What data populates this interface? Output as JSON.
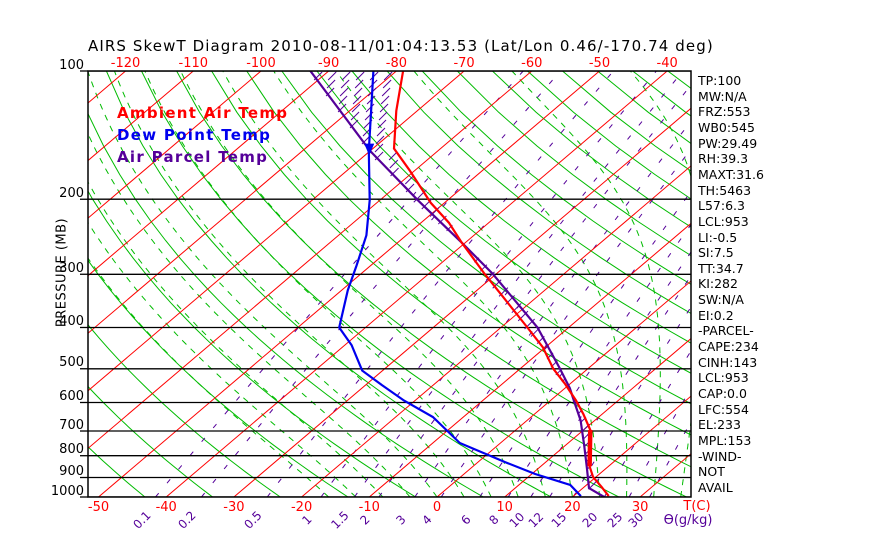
{
  "title": "AIRS SkewT Diagram 2010-08-11/01:04:13.53 (Lat/Lon 0.46/-170.74 deg)",
  "legend": {
    "items": [
      {
        "label": "Ambient Air Temp",
        "color": "#ff0000"
      },
      {
        "label": "Dew Point Temp",
        "color": "#0000ee"
      },
      {
        "label": "Air Parcel Temp",
        "color": "#550099"
      }
    ]
  },
  "axes": {
    "pressure_label": "PRESSURE (MB)",
    "pressure_ticks": [
      100,
      200,
      300,
      400,
      500,
      600,
      700,
      800,
      900,
      1000
    ],
    "temp_ticks_top": [
      -120,
      -110,
      -100,
      -90,
      -80,
      -70,
      -60,
      -50,
      -40
    ],
    "temp_ticks_bottom": [
      -50,
      -40,
      -30,
      -20,
      -10,
      0,
      10,
      20,
      30
    ],
    "temp_unit_label": "T(C)",
    "mixing_ratio_labels": [
      "0.1",
      "0.2",
      "0.5",
      "1",
      "1.5",
      "2",
      "3",
      "4",
      "6",
      "8",
      "10",
      "12",
      "15",
      "20",
      "25",
      "30"
    ],
    "mixing_ratio_unit_label": "Ɵ(g/kg)"
  },
  "stats": [
    "TP:100",
    "MW:N/A",
    "FRZ:553",
    "WB0:545",
    "PW:29.49",
    "RH:39.3",
    "MAXT:31.6",
    "TH:5463",
    "L57:6.3",
    "LCL:953",
    "LI:-0.5",
    "SI:7.5",
    "TT:34.7",
    "KI:282",
    "SW:N/A",
    "EI:0.2",
    "-PARCEL-",
    "CAPE:234",
    "CINH:143",
    "LCL:953",
    "CAP:0.0",
    "LFC:554",
    "EL:233",
    "MPL:153",
    "-WIND-",
    "NOT",
    "AVAIL"
  ],
  "colors": {
    "isotherm": "#ff0000",
    "dry_adiabat": "#00bb00",
    "moist_adiabat": "#00bb00",
    "mixing_ratio": "#550099",
    "isobar": "#000000",
    "frame": "#000000",
    "ambient": "#ff0000",
    "dewpoint": "#0000ee",
    "parcel": "#550099",
    "hatch": "#550099",
    "marker": "#0000ee"
  },
  "chart_data": {
    "type": "line",
    "title": "AIRS SkewT Diagram 2010-08-11/01:04:13.53 (Lat/Lon 0.46/-170.74 deg)",
    "xlabel": "Temperature (C)",
    "ylabel": "PRESSURE (MB)",
    "y_scale": "log",
    "ylim": [
      100,
      1000
    ],
    "x_bottom_range": [
      -50,
      30
    ],
    "x_top_range": [
      -120,
      -40
    ],
    "skew": "45deg isotherms",
    "grid": {
      "isobars_mb": [
        100,
        200,
        300,
        400,
        500,
        600,
        700,
        800,
        900,
        1000
      ],
      "isotherm_step_C": 10,
      "isotherm_range_C": [
        -160,
        40
      ],
      "dry_adiabats_K": {
        "start": 220,
        "end": 450,
        "step": 10
      },
      "moist_adiabats_C": {
        "start": -16,
        "end": 40,
        "step": 4
      },
      "mixing_ratio_g_kg": [
        0.1,
        0.2,
        0.5,
        1,
        1.5,
        2,
        3,
        4,
        6,
        8,
        10,
        12,
        15,
        20,
        25,
        30
      ]
    },
    "series": [
      {
        "name": "Ambient Air Temp",
        "color": "#ff0000",
        "points_p_t": [
          [
            100,
            -79.0
          ],
          [
            124,
            -73.1
          ],
          [
            152,
            -66.9
          ],
          [
            171,
            -60.8
          ],
          [
            204,
            -52.0
          ],
          [
            227,
            -45.9
          ],
          [
            253,
            -40.5
          ],
          [
            299,
            -31.8
          ],
          [
            336,
            -25.5
          ],
          [
            400,
            -16.1
          ],
          [
            445,
            -10.4
          ],
          [
            500,
            -5.1
          ],
          [
            543,
            -0.7
          ],
          [
            594,
            3.8
          ],
          [
            640,
            7.3
          ],
          [
            696,
            11.0
          ],
          [
            775,
            14.4
          ],
          [
            847,
            17.2
          ],
          [
            898,
            19.6
          ],
          [
            946,
            22.5
          ],
          [
            995,
            25.2
          ]
        ]
      },
      {
        "name": "Dew Point Temp",
        "color": "#0000ee",
        "points_p_t": [
          [
            100,
            -83.4
          ],
          [
            154,
            -70.2
          ],
          [
            201,
            -61.5
          ],
          [
            243,
            -55.9
          ],
          [
            286,
            -52.1
          ],
          [
            327,
            -49.1
          ],
          [
            400,
            -43.9
          ],
          [
            440,
            -39.0
          ],
          [
            505,
            -33.0
          ],
          [
            546,
            -27.6
          ],
          [
            594,
            -21.6
          ],
          [
            649,
            -14.5
          ],
          [
            747,
            -6.0
          ],
          [
            828,
            4.0
          ],
          [
            883,
            10.5
          ],
          [
            937,
            17.6
          ],
          [
            995,
            21.1
          ]
        ]
      },
      {
        "name": "Air Parcel Temp",
        "color": "#550099",
        "points_p_t": [
          [
            100,
            -92.7
          ],
          [
            154,
            -70.0
          ],
          [
            201,
            -54.4
          ],
          [
            253,
            -40.5
          ],
          [
            299,
            -30.6
          ],
          [
            400,
            -14.6
          ],
          [
            499,
            -4.2
          ],
          [
            555,
            0.7
          ],
          [
            600,
            3.9
          ],
          [
            661,
            7.9
          ],
          [
            757,
            12.8
          ],
          [
            855,
            17.1
          ],
          [
            953,
            20.9
          ],
          [
            1000,
            24.7
          ]
        ]
      }
    ],
    "thick_ambient_segment_p": [
      696,
      847
    ],
    "parcel_marker_p": 153,
    "annotations": {
      "hatched_region": "between Ambient and Parcel curves (CAPE/CIN areas)",
      "levels_mb": {
        "LCL": 953,
        "LFC": 554,
        "EL": 233,
        "MPL": 153,
        "TP": 100
      }
    }
  }
}
